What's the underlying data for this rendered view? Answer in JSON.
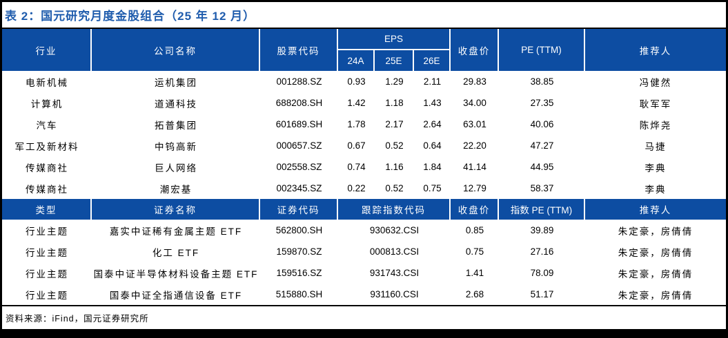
{
  "title": "表 2：国元研究月度金股组合（25 年 12 月）",
  "colors": {
    "header_blue": "#0d4da2",
    "title_blue": "#1f5cad",
    "frame_black": "#000000"
  },
  "stock_table": {
    "headers": {
      "industry": "行业",
      "company": "公司名称",
      "code": "股票代码",
      "eps": "EPS",
      "eps_24a": "24A",
      "eps_25e": "25E",
      "eps_26e": "26E",
      "close": "收盘价",
      "pe": "PE (TTM)",
      "recommender": "推荐人"
    },
    "rows": [
      {
        "industry": "电新机械",
        "company": "运机集团",
        "code": "001288.SZ",
        "eps_24a": "0.93",
        "eps_25e": "1.29",
        "eps_26e": "2.11",
        "close": "29.83",
        "pe": "38.85",
        "recommender": "冯健然"
      },
      {
        "industry": "计算机",
        "company": "道通科技",
        "code": "688208.SH",
        "eps_24a": "1.42",
        "eps_25e": "1.18",
        "eps_26e": "1.43",
        "close": "34.00",
        "pe": "27.35",
        "recommender": "耿军军"
      },
      {
        "industry": "汽车",
        "company": "拓普集团",
        "code": "601689.SH",
        "eps_24a": "1.78",
        "eps_25e": "2.17",
        "eps_26e": "2.64",
        "close": "63.01",
        "pe": "40.06",
        "recommender": "陈烨尧"
      },
      {
        "industry": "军工及新材料",
        "company": "中钨高新",
        "code": "000657.SZ",
        "eps_24a": "0.67",
        "eps_25e": "0.52",
        "eps_26e": "0.64",
        "close": "22.20",
        "pe": "47.27",
        "recommender": "马捷"
      },
      {
        "industry": "传媒商社",
        "company": "巨人网络",
        "code": "002558.SZ",
        "eps_24a": "0.74",
        "eps_25e": "1.16",
        "eps_26e": "1.84",
        "close": "41.14",
        "pe": "44.95",
        "recommender": "李典"
      },
      {
        "industry": "传媒商社",
        "company": "潮宏基",
        "code": "002345.SZ",
        "eps_24a": "0.22",
        "eps_25e": "0.52",
        "eps_26e": "0.75",
        "close": "12.79",
        "pe": "58.37",
        "recommender": "李典"
      }
    ]
  },
  "etf_table": {
    "headers": {
      "type": "类型",
      "name": "证券名称",
      "code": "证券代码",
      "index_code": "跟踪指数代码",
      "close": "收盘价",
      "index_pe": "指数 PE (TTM)",
      "recommender": "推荐人"
    },
    "rows": [
      {
        "type": "行业主题",
        "name": "嘉实中证稀有金属主题 ETF",
        "code": "562800.SH",
        "index_code": "930632.CSI",
        "close": "0.85",
        "index_pe": "39.89",
        "recommender": "朱定豪，房倩倩"
      },
      {
        "type": "行业主题",
        "name": "化工 ETF",
        "code": "159870.SZ",
        "index_code": "000813.CSI",
        "close": "0.75",
        "index_pe": "27.16",
        "recommender": "朱定豪，房倩倩"
      },
      {
        "type": "行业主题",
        "name": "国泰中证半导体材料设备主题 ETF",
        "code": "159516.SZ",
        "index_code": "931743.CSI",
        "close": "1.41",
        "index_pe": "78.09",
        "recommender": "朱定豪，房倩倩"
      },
      {
        "type": "行业主题",
        "name": "国泰中证全指通信设备 ETF",
        "code": "515880.SH",
        "index_code": "931160.CSI",
        "close": "2.68",
        "index_pe": "51.17",
        "recommender": "朱定豪，房倩倩"
      }
    ]
  },
  "footer": {
    "source": "资料来源：iFind，国元证券研究所"
  }
}
